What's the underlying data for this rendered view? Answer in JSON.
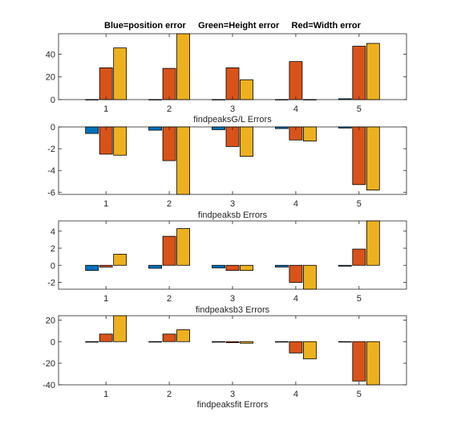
{
  "figure": {
    "title": "Blue=position error     Green=Height error     Red=Width error"
  },
  "chart_data": [
    {
      "type": "bar",
      "xlabel": "findpeaksG/L Errors",
      "categories": [
        "1",
        "2",
        "3",
        "4",
        "5"
      ],
      "ylim": [
        0,
        58
      ],
      "yticks": [
        0,
        20,
        40
      ],
      "series": [
        {
          "color": "#0072BD",
          "values": [
            0.1,
            0.1,
            0.1,
            0.1,
            0.8
          ]
        },
        {
          "color": "#D95319",
          "values": [
            28,
            27.5,
            28,
            33.5,
            47
          ]
        },
        {
          "color": "#EDB120",
          "values": [
            45.5,
            58,
            17.5,
            0.1,
            49.5
          ]
        }
      ]
    },
    {
      "type": "bar",
      "xlabel": "findpeaksb Errors",
      "categories": [
        "1",
        "2",
        "3",
        "4",
        "5"
      ],
      "ylim": [
        -6.2,
        0
      ],
      "yticks": [
        -6,
        -4,
        -2,
        0
      ],
      "series": [
        {
          "color": "#0072BD",
          "values": [
            -0.6,
            -0.3,
            -0.25,
            -0.15,
            -0.1
          ]
        },
        {
          "color": "#D95319",
          "values": [
            -2.5,
            -3.1,
            -1.8,
            -1.2,
            -5.3
          ]
        },
        {
          "color": "#EDB120",
          "values": [
            -2.6,
            -6.2,
            -2.7,
            -1.3,
            -5.8
          ]
        }
      ]
    },
    {
      "type": "bar",
      "xlabel": "findpeaksb3 Errors",
      "categories": [
        "1",
        "2",
        "3",
        "4",
        "5"
      ],
      "ylim": [
        -2.8,
        5.2
      ],
      "yticks": [
        -2,
        0,
        2,
        4
      ],
      "series": [
        {
          "color": "#0072BD",
          "values": [
            -0.6,
            -0.35,
            -0.3,
            -0.2,
            -0.1
          ]
        },
        {
          "color": "#D95319",
          "values": [
            -0.2,
            3.4,
            -0.6,
            -2.0,
            1.9
          ]
        },
        {
          "color": "#EDB120",
          "values": [
            1.3,
            4.3,
            -0.6,
            -2.8,
            5.2
          ]
        }
      ]
    },
    {
      "type": "bar",
      "xlabel": "findpeaksfit Errors",
      "categories": [
        "1",
        "2",
        "3",
        "4",
        "5"
      ],
      "ylim": [
        -40,
        24
      ],
      "yticks": [
        -40,
        -20,
        0,
        20
      ],
      "series": [
        {
          "color": "#0072BD",
          "values": [
            -0.5,
            -0.2,
            -0.5,
            -0.2,
            -0.2
          ]
        },
        {
          "color": "#D95319",
          "values": [
            7,
            7,
            -1,
            -10.5,
            -36.5
          ]
        },
        {
          "color": "#EDB120",
          "values": [
            24,
            11,
            -1.5,
            -16,
            -40
          ]
        }
      ]
    }
  ]
}
